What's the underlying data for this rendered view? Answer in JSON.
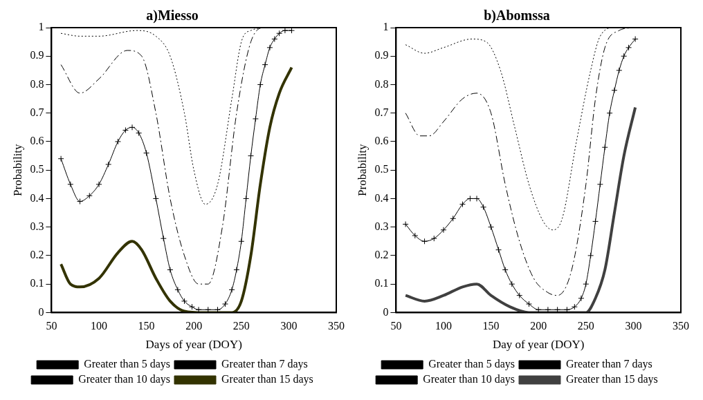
{
  "chart_data": [
    {
      "type": "line",
      "title": "a)Miesso",
      "xlabel": "Days of year (DOY)",
      "ylabel": "Probability",
      "xlim": [
        50,
        350
      ],
      "xticks": [
        50,
        100,
        150,
        200,
        250,
        300,
        350
      ],
      "ylim": [
        0,
        1
      ],
      "yticks": [
        0,
        0.1,
        0.2,
        0.3,
        0.4,
        0.5,
        0.6,
        0.7,
        0.8,
        0.9,
        1
      ],
      "grid": false,
      "legend": "bottom",
      "series": [
        {
          "name": "Greater than 5 days",
          "color": "#000000",
          "line_style": "dotted",
          "marker": "none",
          "x": [
            60,
            80,
            100,
            140,
            160,
            175,
            190,
            200,
            212,
            225,
            240,
            250,
            260,
            280,
            300
          ],
          "values": [
            0.98,
            0.97,
            0.97,
            0.99,
            0.97,
            0.9,
            0.7,
            0.5,
            0.38,
            0.45,
            0.75,
            0.95,
            0.99,
            1,
            1
          ]
        },
        {
          "name": "Greater than 7 days",
          "color": "#000000",
          "line_style": "dashed",
          "marker": "none",
          "x": [
            60,
            80,
            100,
            130,
            145,
            160,
            175,
            190,
            205,
            215,
            230,
            245,
            260,
            275,
            300
          ],
          "values": [
            0.87,
            0.77,
            0.82,
            0.92,
            0.9,
            0.7,
            0.4,
            0.2,
            0.1,
            0.1,
            0.3,
            0.7,
            0.95,
            1,
            1
          ]
        },
        {
          "name": "Greater than 10 days",
          "color": "#000000",
          "line_style": "solid",
          "marker": "cross",
          "x": [
            60,
            70,
            80,
            90,
            100,
            110,
            120,
            128,
            135,
            142,
            150,
            160,
            168,
            175,
            183,
            190,
            198,
            205,
            215,
            225,
            233,
            240,
            245,
            250,
            255,
            260,
            265,
            270,
            275,
            280,
            285,
            290,
            296,
            303
          ],
          "values": [
            0.54,
            0.45,
            0.39,
            0.41,
            0.45,
            0.52,
            0.6,
            0.64,
            0.65,
            0.63,
            0.56,
            0.4,
            0.26,
            0.15,
            0.08,
            0.04,
            0.02,
            0.01,
            0.01,
            0.01,
            0.03,
            0.08,
            0.15,
            0.25,
            0.4,
            0.55,
            0.68,
            0.8,
            0.87,
            0.93,
            0.96,
            0.98,
            0.99,
            0.99
          ]
        },
        {
          "name": "Greater than 15 days",
          "color": "#333300",
          "line_style": "solid",
          "marker": "none",
          "x": [
            60,
            70,
            80,
            100,
            120,
            135,
            145,
            160,
            175,
            190,
            210,
            240,
            250,
            260,
            270,
            280,
            290,
            303
          ],
          "values": [
            0.17,
            0.1,
            0.09,
            0.12,
            0.21,
            0.25,
            0.22,
            0.12,
            0.04,
            0.005,
            0,
            0,
            0.04,
            0.2,
            0.45,
            0.65,
            0.77,
            0.86
          ]
        }
      ]
    },
    {
      "type": "line",
      "title": "b)Abomssa",
      "xlabel": "Day of year (DOY)",
      "ylabel": "Probability",
      "xlim": [
        50,
        350
      ],
      "xticks": [
        50,
        100,
        150,
        200,
        250,
        300,
        350
      ],
      "ylim": [
        0,
        1
      ],
      "yticks": [
        0,
        0.1,
        0.2,
        0.3,
        0.4,
        0.5,
        0.6,
        0.7,
        0.8,
        0.9,
        1
      ],
      "grid": false,
      "legend": "bottom",
      "series": [
        {
          "name": "Greater than 5 days",
          "color": "#000000",
          "line_style": "dotted",
          "marker": "none",
          "x": [
            60,
            80,
            100,
            130,
            145,
            160,
            175,
            190,
            205,
            215,
            225,
            240,
            255,
            265,
            280,
            300
          ],
          "values": [
            0.94,
            0.91,
            0.93,
            0.96,
            0.95,
            0.85,
            0.65,
            0.45,
            0.32,
            0.29,
            0.33,
            0.6,
            0.85,
            0.97,
            1,
            1
          ]
        },
        {
          "name": "Greater than 7 days",
          "color": "#000000",
          "line_style": "dashed",
          "marker": "none",
          "x": [
            60,
            75,
            85,
            100,
            120,
            135,
            150,
            165,
            180,
            195,
            210,
            220,
            235,
            250,
            260,
            270,
            285,
            300
          ],
          "values": [
            0.7,
            0.62,
            0.62,
            0.67,
            0.75,
            0.77,
            0.7,
            0.45,
            0.25,
            0.12,
            0.07,
            0.06,
            0.15,
            0.45,
            0.75,
            0.93,
            0.99,
            1
          ]
        },
        {
          "name": "Greater than 10 days",
          "color": "#000000",
          "line_style": "solid",
          "marker": "cross",
          "x": [
            60,
            70,
            80,
            90,
            100,
            110,
            120,
            128,
            135,
            142,
            150,
            158,
            165,
            172,
            180,
            190,
            200,
            210,
            220,
            230,
            238,
            245,
            250,
            255,
            260,
            265,
            270,
            275,
            280,
            285,
            290,
            295,
            302
          ],
          "values": [
            0.31,
            0.27,
            0.25,
            0.26,
            0.29,
            0.33,
            0.38,
            0.4,
            0.4,
            0.37,
            0.3,
            0.22,
            0.15,
            0.1,
            0.06,
            0.03,
            0.01,
            0.01,
            0.01,
            0.01,
            0.02,
            0.05,
            0.1,
            0.2,
            0.32,
            0.45,
            0.58,
            0.7,
            0.78,
            0.85,
            0.9,
            0.93,
            0.96
          ]
        },
        {
          "name": "Greater than 15 days",
          "color": "#404040",
          "line_style": "solid",
          "marker": "none",
          "x": [
            60,
            80,
            100,
            120,
            135,
            150,
            170,
            190,
            250,
            260,
            270,
            280,
            290,
            302
          ],
          "values": [
            0.06,
            0.04,
            0.06,
            0.09,
            0.1,
            0.06,
            0.02,
            0,
            0,
            0.05,
            0.15,
            0.35,
            0.55,
            0.72
          ]
        }
      ]
    }
  ]
}
